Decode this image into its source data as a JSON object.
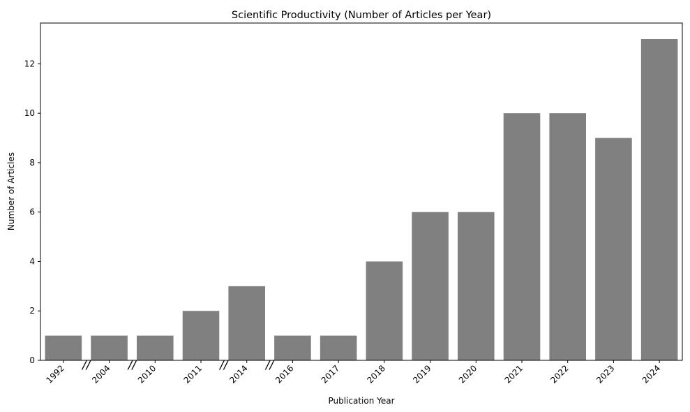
{
  "chart_data": {
    "type": "bar",
    "title": "Scientific Productivity (Number of Articles per Year)",
    "xlabel": "Publication Year",
    "ylabel": "Number of Articles",
    "categories": [
      "1992",
      "2004",
      "2010",
      "2011",
      "2014",
      "2016",
      "2017",
      "2018",
      "2019",
      "2020",
      "2021",
      "2022",
      "2023",
      "2024"
    ],
    "values": [
      1,
      1,
      1,
      2,
      3,
      1,
      1,
      4,
      6,
      6,
      10,
      10,
      9,
      13
    ],
    "y_ticks": [
      0,
      2,
      4,
      6,
      8,
      10,
      12
    ],
    "ylim": [
      0,
      13.65
    ],
    "axis_break_after": [
      "1992",
      "2004",
      "2011",
      "2014"
    ],
    "axis_break_glyph": "//",
    "bar_color": "#808080",
    "grid": false,
    "legend": "none"
  }
}
